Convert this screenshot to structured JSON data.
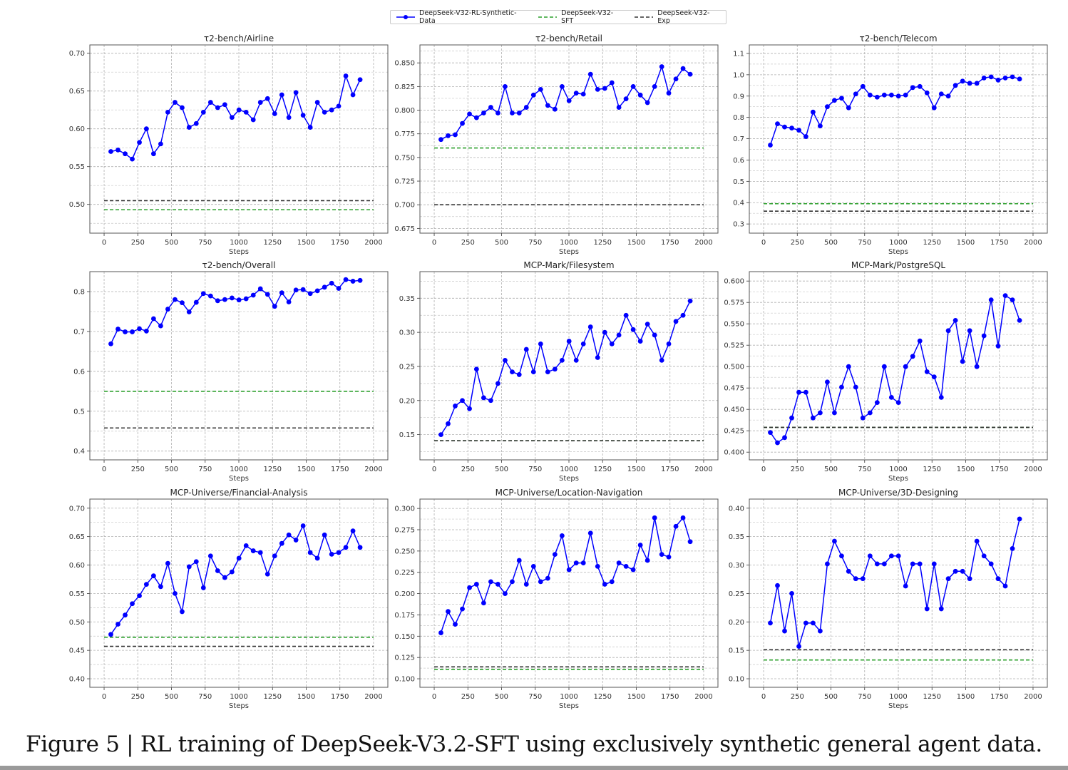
{
  "legend": [
    {
      "name": "DeepSeek-V32-RL-Synthetic-Data",
      "color": "#0000ff",
      "style": "solid-marker"
    },
    {
      "name": "DeepSeek-V32-SFT",
      "color": "#2ca02c",
      "style": "dashed"
    },
    {
      "name": "DeepSeek-V32-Exp",
      "color": "#333333",
      "style": "dashed"
    }
  ],
  "caption": "Figure 5 | RL training of DeepSeek-V3.2-SFT using exclusively synthetic general agent data.",
  "chart_data": [
    {
      "type": "line",
      "title": "τ2-bench/Airline",
      "xlabel": "Steps",
      "ylabel": "",
      "xlim": [
        -106,
        2106
      ],
      "ylim": [
        0.462,
        0.711
      ],
      "xticks": [
        0,
        250,
        500,
        750,
        1000,
        1250,
        1500,
        1750,
        2000
      ],
      "yticks": [
        "0.50",
        "0.55",
        "0.60",
        "0.65",
        "0.70"
      ],
      "grid": true,
      "x": [
        50,
        103,
        156,
        209,
        262,
        314,
        367,
        420,
        473,
        526,
        579,
        631,
        684,
        737,
        790,
        843,
        896,
        949,
        1001,
        1054,
        1107,
        1160,
        1213,
        1266,
        1319,
        1371,
        1424,
        1477,
        1530,
        1583,
        1636,
        1689,
        1741,
        1794,
        1847,
        1900
      ],
      "series": [
        {
          "name": "DeepSeek-V32-RL-Synthetic-Data",
          "values": [
            0.57,
            0.572,
            0.567,
            0.56,
            0.582,
            0.6,
            0.567,
            0.58,
            0.622,
            0.635,
            0.628,
            0.602,
            0.607,
            0.622,
            0.635,
            0.628,
            0.632,
            0.615,
            0.625,
            0.622,
            0.612,
            0.635,
            0.64,
            0.62,
            0.645,
            0.615,
            0.648,
            0.618,
            0.602,
            0.635,
            0.622,
            0.625,
            0.63,
            0.67,
            0.645,
            0.665
          ]
        }
      ],
      "baselines": {
        "DeepSeek-V32-SFT": 0.493,
        "DeepSeek-V32-Exp": 0.505
      }
    },
    {
      "type": "line",
      "title": "τ2-bench/Retail",
      "xlabel": "Steps",
      "ylabel": "",
      "xlim": [
        -106,
        2106
      ],
      "ylim": [
        0.67,
        0.869
      ],
      "xticks": [
        0,
        250,
        500,
        750,
        1000,
        1250,
        1500,
        1750,
        2000
      ],
      "yticks": [
        "0.675",
        "0.700",
        "0.725",
        "0.750",
        "0.775",
        "0.800",
        "0.825",
        "0.850"
      ],
      "grid": true,
      "x": [
        50,
        103,
        156,
        209,
        262,
        314,
        367,
        420,
        473,
        526,
        579,
        631,
        684,
        737,
        790,
        843,
        896,
        949,
        1001,
        1054,
        1107,
        1160,
        1213,
        1266,
        1319,
        1371,
        1424,
        1477,
        1530,
        1583,
        1636,
        1689,
        1741,
        1794,
        1847,
        1900
      ],
      "series": [
        {
          "name": "DeepSeek-V32-RL-Synthetic-Data",
          "values": [
            0.769,
            0.773,
            0.774,
            0.786,
            0.796,
            0.792,
            0.797,
            0.803,
            0.797,
            0.825,
            0.797,
            0.797,
            0.803,
            0.816,
            0.822,
            0.805,
            0.801,
            0.825,
            0.81,
            0.818,
            0.817,
            0.838,
            0.822,
            0.823,
            0.829,
            0.803,
            0.812,
            0.825,
            0.816,
            0.808,
            0.825,
            0.846,
            0.818,
            0.833,
            0.844,
            0.838
          ]
        }
      ],
      "baselines": {
        "DeepSeek-V32-SFT": 0.76,
        "DeepSeek-V32-Exp": 0.7
      }
    },
    {
      "type": "line",
      "title": "τ2-bench/Telecom",
      "xlabel": "Steps",
      "ylabel": "",
      "xlim": [
        -106,
        2106
      ],
      "ylim": [
        0.257,
        1.14
      ],
      "xticks": [
        0,
        250,
        500,
        750,
        1000,
        1250,
        1500,
        1750,
        2000
      ],
      "yticks": [
        "0.3",
        "0.4",
        "0.5",
        "0.6",
        "0.7",
        "0.8",
        "0.9",
        "1.0",
        "1.1"
      ],
      "grid": true,
      "x": [
        50,
        103,
        156,
        209,
        262,
        314,
        367,
        420,
        473,
        526,
        579,
        631,
        684,
        737,
        790,
        843,
        896,
        949,
        1001,
        1054,
        1107,
        1160,
        1213,
        1266,
        1319,
        1371,
        1424,
        1477,
        1530,
        1583,
        1636,
        1689,
        1741,
        1794,
        1847,
        1900
      ],
      "series": [
        {
          "name": "DeepSeek-V32-RL-Synthetic-Data",
          "values": [
            0.67,
            0.77,
            0.755,
            0.75,
            0.74,
            0.71,
            0.825,
            0.76,
            0.85,
            0.88,
            0.89,
            0.845,
            0.91,
            0.945,
            0.905,
            0.895,
            0.905,
            0.905,
            0.9,
            0.905,
            0.94,
            0.945,
            0.915,
            0.845,
            0.91,
            0.9,
            0.95,
            0.97,
            0.96,
            0.96,
            0.985,
            0.99,
            0.975,
            0.985,
            0.99,
            0.98
          ]
        }
      ],
      "baselines": {
        "DeepSeek-V32-SFT": 0.395,
        "DeepSeek-V32-Exp": 0.36
      }
    },
    {
      "type": "line",
      "title": "τ2-bench/Overall",
      "xlabel": "Steps",
      "ylabel": "",
      "xlim": [
        -106,
        2106
      ],
      "ylim": [
        0.378,
        0.85
      ],
      "xticks": [
        0,
        250,
        500,
        750,
        1000,
        1250,
        1500,
        1750,
        2000
      ],
      "yticks": [
        "0.4",
        "0.5",
        "0.6",
        "0.7",
        "0.8"
      ],
      "grid": true,
      "x": [
        50,
        103,
        156,
        209,
        262,
        314,
        367,
        420,
        473,
        526,
        579,
        631,
        684,
        737,
        790,
        843,
        896,
        949,
        1001,
        1054,
        1107,
        1160,
        1213,
        1266,
        1319,
        1371,
        1424,
        1477,
        1530,
        1583,
        1636,
        1689,
        1741,
        1794,
        1847,
        1900
      ],
      "series": [
        {
          "name": "DeepSeek-V32-RL-Synthetic-Data",
          "values": [
            0.669,
            0.706,
            0.699,
            0.699,
            0.707,
            0.701,
            0.732,
            0.714,
            0.756,
            0.78,
            0.772,
            0.749,
            0.773,
            0.795,
            0.789,
            0.777,
            0.78,
            0.784,
            0.779,
            0.782,
            0.791,
            0.807,
            0.793,
            0.763,
            0.797,
            0.774,
            0.804,
            0.805,
            0.795,
            0.802,
            0.811,
            0.821,
            0.808,
            0.83,
            0.826,
            0.828
          ]
        }
      ],
      "baselines": {
        "DeepSeek-V32-SFT": 0.55,
        "DeepSeek-V32-Exp": 0.458
      }
    },
    {
      "type": "line",
      "title": "MCP-Mark/Filesystem",
      "xlabel": "Steps",
      "ylabel": "",
      "xlim": [
        -106,
        2106
      ],
      "ylim": [
        0.113,
        0.389
      ],
      "xticks": [
        0,
        250,
        500,
        750,
        1000,
        1250,
        1500,
        1750,
        2000
      ],
      "yticks": [
        "0.15",
        "0.20",
        "0.25",
        "0.30",
        "0.35"
      ],
      "grid": true,
      "x": [
        50,
        103,
        156,
        209,
        262,
        314,
        367,
        420,
        473,
        526,
        579,
        631,
        684,
        737,
        790,
        843,
        896,
        949,
        1001,
        1054,
        1107,
        1160,
        1213,
        1266,
        1319,
        1371,
        1424,
        1477,
        1530,
        1583,
        1636,
        1689,
        1741,
        1794,
        1847,
        1900
      ],
      "series": [
        {
          "name": "DeepSeek-V32-RL-Synthetic-Data",
          "values": [
            0.15,
            0.166,
            0.192,
            0.2,
            0.188,
            0.246,
            0.204,
            0.2,
            0.225,
            0.259,
            0.242,
            0.238,
            0.275,
            0.242,
            0.283,
            0.242,
            0.246,
            0.259,
            0.287,
            0.259,
            0.283,
            0.308,
            0.263,
            0.3,
            0.283,
            0.296,
            0.325,
            0.304,
            0.287,
            0.312,
            0.296,
            0.259,
            0.283,
            0.316,
            0.325,
            0.346
          ]
        }
      ],
      "baselines": {
        "DeepSeek-V32-SFT": 0.141,
        "DeepSeek-V32-Exp": 0.141
      }
    },
    {
      "type": "line",
      "title": "MCP-Mark/PostgreSQL",
      "xlabel": "Steps",
      "ylabel": "",
      "xlim": [
        -106,
        2106
      ],
      "ylim": [
        0.391,
        0.611
      ],
      "xticks": [
        0,
        250,
        500,
        750,
        1000,
        1250,
        1500,
        1750,
        2000
      ],
      "yticks": [
        "0.400",
        "0.425",
        "0.450",
        "0.475",
        "0.500",
        "0.525",
        "0.550",
        "0.575",
        "0.600"
      ],
      "grid": true,
      "x": [
        50,
        103,
        156,
        209,
        262,
        314,
        367,
        420,
        473,
        526,
        579,
        631,
        684,
        737,
        790,
        843,
        896,
        949,
        1001,
        1054,
        1107,
        1160,
        1213,
        1266,
        1319,
        1371,
        1424,
        1477,
        1530,
        1583,
        1636,
        1689,
        1741,
        1794,
        1847,
        1900
      ],
      "series": [
        {
          "name": "DeepSeek-V32-RL-Synthetic-Data",
          "values": [
            0.423,
            0.411,
            0.417,
            0.44,
            0.47,
            0.47,
            0.44,
            0.446,
            0.482,
            0.446,
            0.476,
            0.5,
            0.476,
            0.44,
            0.446,
            0.458,
            0.5,
            0.464,
            0.458,
            0.5,
            0.512,
            0.53,
            0.494,
            0.488,
            0.464,
            0.542,
            0.554,
            0.506,
            0.542,
            0.5,
            0.536,
            0.578,
            0.524,
            0.583,
            0.578,
            0.554
          ]
        }
      ],
      "baselines": {
        "DeepSeek-V32-SFT": 0.429,
        "DeepSeek-V32-Exp": 0.429
      }
    },
    {
      "type": "line",
      "title": "MCP-Universe/Financial-Analysis",
      "xlabel": "Steps",
      "ylabel": "",
      "xlim": [
        -106,
        2106
      ],
      "ylim": [
        0.385,
        0.716
      ],
      "xticks": [
        0,
        250,
        500,
        750,
        1000,
        1250,
        1500,
        1750,
        2000
      ],
      "yticks": [
        "0.40",
        "0.45",
        "0.50",
        "0.55",
        "0.60",
        "0.65",
        "0.70"
      ],
      "grid": true,
      "x": [
        50,
        103,
        156,
        209,
        262,
        314,
        367,
        420,
        473,
        526,
        579,
        631,
        684,
        737,
        790,
        843,
        896,
        949,
        1001,
        1054,
        1107,
        1160,
        1213,
        1266,
        1319,
        1371,
        1424,
        1477,
        1530,
        1583,
        1636,
        1689,
        1741,
        1794,
        1847,
        1900
      ],
      "series": [
        {
          "name": "DeepSeek-V32-RL-Synthetic-Data",
          "values": [
            0.478,
            0.496,
            0.512,
            0.532,
            0.546,
            0.566,
            0.581,
            0.562,
            0.603,
            0.55,
            0.518,
            0.597,
            0.606,
            0.56,
            0.616,
            0.59,
            0.578,
            0.588,
            0.612,
            0.634,
            0.625,
            0.622,
            0.584,
            0.616,
            0.638,
            0.653,
            0.644,
            0.669,
            0.622,
            0.612,
            0.653,
            0.619,
            0.622,
            0.631,
            0.66,
            0.631
          ]
        }
      ],
      "baselines": {
        "DeepSeek-V32-SFT": 0.473,
        "DeepSeek-V32-Exp": 0.457
      }
    },
    {
      "type": "line",
      "title": "MCP-Universe/Location-Navigation",
      "xlabel": "Steps",
      "ylabel": "",
      "xlim": [
        -106,
        2106
      ],
      "ylim": [
        0.09,
        0.311
      ],
      "xticks": [
        0,
        250,
        500,
        750,
        1000,
        1250,
        1500,
        1750,
        2000
      ],
      "yticks": [
        "0.100",
        "0.125",
        "0.150",
        "0.175",
        "0.200",
        "0.225",
        "0.250",
        "0.275",
        "0.300"
      ],
      "grid": true,
      "x": [
        50,
        103,
        156,
        209,
        262,
        314,
        367,
        420,
        473,
        526,
        579,
        631,
        684,
        737,
        790,
        843,
        896,
        949,
        1001,
        1054,
        1107,
        1160,
        1213,
        1266,
        1319,
        1371,
        1424,
        1477,
        1530,
        1583,
        1636,
        1689,
        1741,
        1794,
        1847,
        1900
      ],
      "series": [
        {
          "name": "DeepSeek-V32-RL-Synthetic-Data",
          "values": [
            0.154,
            0.179,
            0.164,
            0.182,
            0.207,
            0.211,
            0.189,
            0.214,
            0.211,
            0.2,
            0.214,
            0.239,
            0.211,
            0.232,
            0.214,
            0.218,
            0.246,
            0.268,
            0.228,
            0.236,
            0.236,
            0.271,
            0.232,
            0.211,
            0.214,
            0.236,
            0.232,
            0.228,
            0.257,
            0.239,
            0.289,
            0.246,
            0.243,
            0.279,
            0.289,
            0.261
          ]
        }
      ],
      "baselines": {
        "DeepSeek-V32-SFT": 0.111,
        "DeepSeek-V32-Exp": 0.114
      }
    },
    {
      "type": "line",
      "title": "MCP-Universe/3D-Designing",
      "xlabel": "Steps",
      "ylabel": "",
      "xlim": [
        -106,
        2106
      ],
      "ylim": [
        0.085,
        0.416
      ],
      "xticks": [
        0,
        250,
        500,
        750,
        1000,
        1250,
        1500,
        1750,
        2000
      ],
      "yticks": [
        "0.10",
        "0.15",
        "0.20",
        "0.25",
        "0.30",
        "0.35",
        "0.40"
      ],
      "grid": true,
      "x": [
        50,
        103,
        156,
        209,
        262,
        314,
        367,
        420,
        473,
        526,
        579,
        631,
        684,
        737,
        790,
        843,
        896,
        949,
        1001,
        1054,
        1107,
        1160,
        1213,
        1266,
        1319,
        1371,
        1424,
        1477,
        1530,
        1583,
        1636,
        1689,
        1741,
        1794,
        1847,
        1900
      ],
      "series": [
        {
          "name": "DeepSeek-V32-RL-Synthetic-Data",
          "values": [
            0.198,
            0.264,
            0.184,
            0.25,
            0.157,
            0.198,
            0.198,
            0.184,
            0.302,
            0.342,
            0.316,
            0.289,
            0.276,
            0.276,
            0.316,
            0.302,
            0.302,
            0.316,
            0.316,
            0.263,
            0.302,
            0.302,
            0.223,
            0.302,
            0.223,
            0.276,
            0.289,
            0.289,
            0.276,
            0.342,
            0.316,
            0.302,
            0.276,
            0.263,
            0.329,
            0.381
          ]
        }
      ],
      "baselines": {
        "DeepSeek-V32-SFT": 0.133,
        "DeepSeek-V32-Exp": 0.151
      }
    }
  ]
}
